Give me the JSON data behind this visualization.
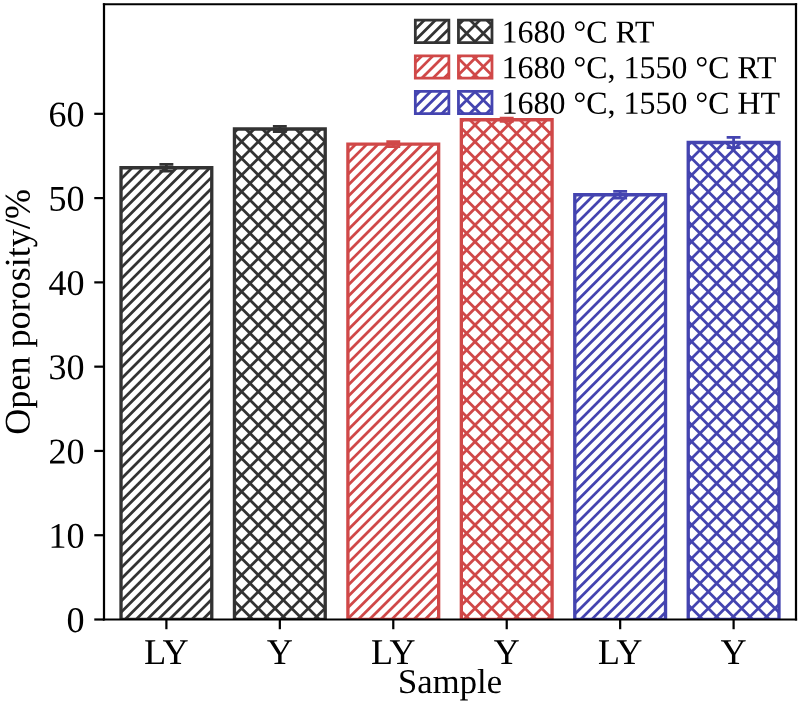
{
  "chart_data": {
    "type": "bar",
    "xlabel": "Sample",
    "ylabel": "Open porosity/%",
    "categories": [
      "LY",
      "Y",
      "LY",
      "Y",
      "LY",
      "Y"
    ],
    "series": [
      {
        "name": "1680 °C RT",
        "color": "#333333",
        "values": [
          53.6,
          58.2,
          null,
          null,
          null,
          null
        ],
        "errors": [
          0.4,
          0.3,
          null,
          null,
          null,
          null
        ]
      },
      {
        "name": "1680 °C, 1550 °C RT",
        "color": "#d04848",
        "values": [
          null,
          null,
          56.4,
          59.3,
          null,
          null
        ],
        "errors": [
          null,
          null,
          0.3,
          0.2,
          null,
          null
        ]
      },
      {
        "name": "1680 °C, 1550 °C HT",
        "color": "#4444b0",
        "values": [
          null,
          null,
          null,
          null,
          50.4,
          56.6
        ],
        "errors": [
          null,
          null,
          null,
          null,
          0.4,
          0.6
        ]
      }
    ],
    "ylim": [
      0,
      73
    ],
    "yticks": [
      0,
      10,
      20,
      30,
      40,
      50,
      60
    ],
    "legend": "top right",
    "grid": false
  }
}
